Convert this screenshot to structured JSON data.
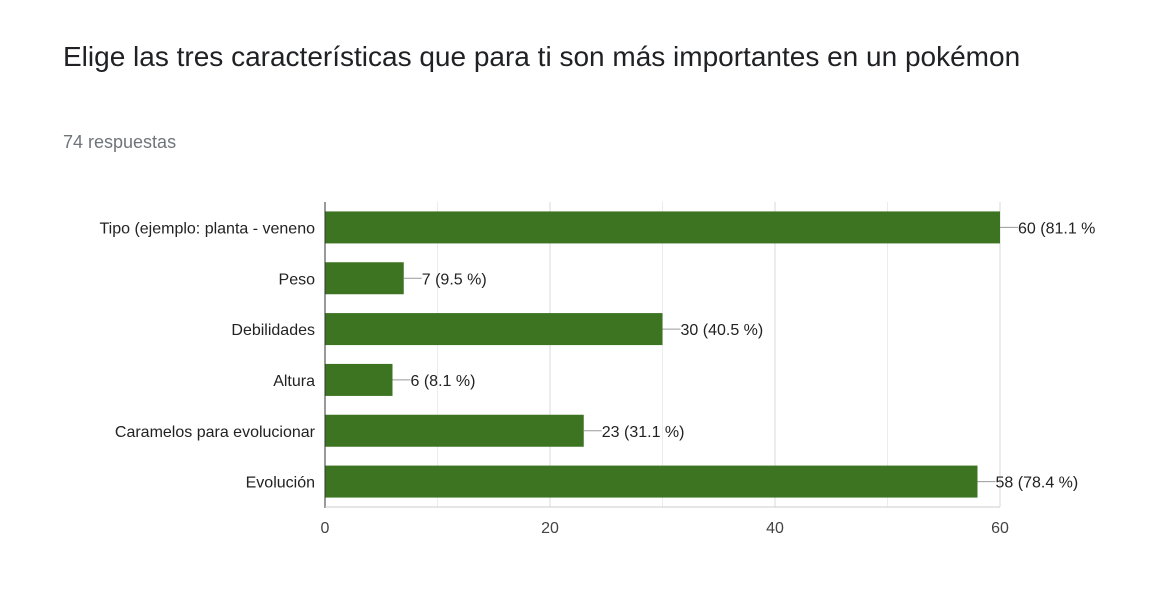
{
  "header": {
    "title": "Elige las tres características que para ti son más importantes en un pokémon",
    "responses": "74 respuestas"
  },
  "chart_data": {
    "type": "bar",
    "orientation": "horizontal",
    "categories": [
      "Tipo (ejemplo: planta - veneno",
      "Peso",
      "Debilidades",
      "Altura",
      "Caramelos para evolucionar",
      "Evolución"
    ],
    "values": [
      60,
      7,
      30,
      6,
      23,
      58
    ],
    "data_labels": [
      "60 (81.1 %",
      "7 (9.5 %)",
      "30 (40.5 %)",
      "6 (8.1 %)",
      "23 (31.1 %)",
      "58 (78.4 %)"
    ],
    "xticks": [
      0,
      20,
      40,
      60
    ],
    "xlim": [
      0,
      60
    ],
    "grid": true,
    "bar_color": "#3d7421",
    "title": "Elige las tres características que para ti son más importantes en un pokémon",
    "xlabel": "",
    "ylabel": ""
  }
}
